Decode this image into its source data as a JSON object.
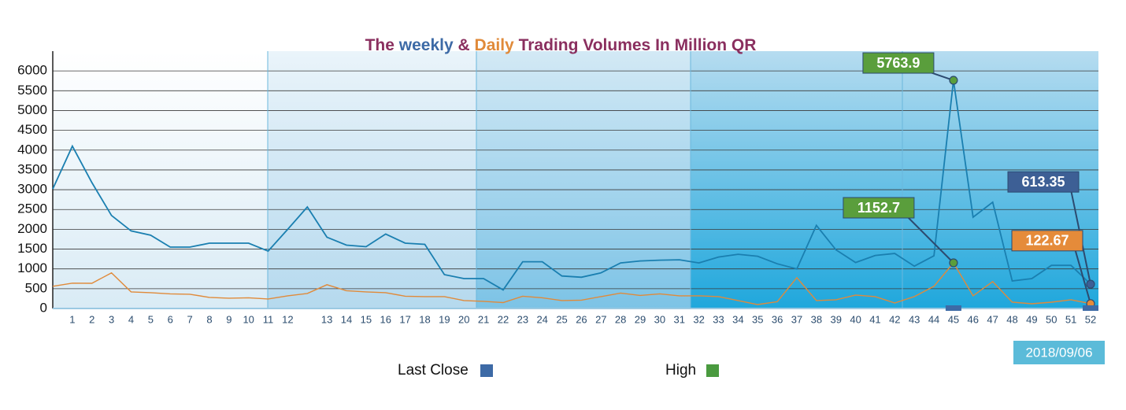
{
  "chart_data": {
    "type": "line",
    "title_parts": [
      {
        "text": "The",
        "color": "#8a2f5f"
      },
      {
        "text": "weekly",
        "color": "#3d6aa6"
      },
      {
        "text": "&",
        "color": "#8a2f5f"
      },
      {
        "text": "Daily",
        "color": "#e08a3a"
      },
      {
        "text": "Trading Volumes In Million QR",
        "color": "#8a2f5f"
      }
    ],
    "categories": [
      null,
      "1",
      "2",
      "3",
      "4",
      "5",
      "6",
      "7",
      "8",
      "9",
      "10",
      "11",
      "12",
      null,
      "13",
      "14",
      "15",
      "16",
      "17",
      "18",
      "19",
      "20",
      "21",
      "22",
      "23",
      "24",
      "25",
      "26",
      "27",
      "28",
      "29",
      "30",
      "31",
      "32",
      "33",
      "34",
      "35",
      "36",
      "37",
      "38",
      "39",
      "40",
      "41",
      "42",
      "43",
      "44",
      "45",
      "46",
      "47",
      "48",
      "49",
      "50",
      "51",
      "52"
    ],
    "series": [
      {
        "color": "#1a7fb0",
        "values": [
          3020,
          4100,
          3180,
          2350,
          1960,
          1850,
          1550,
          1550,
          1650,
          1650,
          1650,
          1450,
          2000,
          2565,
          1800,
          1600,
          1560,
          1880,
          1650,
          1620,
          855,
          755,
          755,
          470,
          1180,
          1180,
          820,
          790,
          900,
          1150,
          1200,
          1220,
          1230,
          1150,
          1300,
          1370,
          1320,
          1130,
          1000,
          2100,
          1480,
          1160,
          1340,
          1390,
          1070,
          1330,
          5763.9,
          2305,
          2685,
          695,
          755,
          1090,
          1090,
          613.35
        ],
        "value_labels": [
          null,
          null,
          null,
          null,
          null,
          null,
          null,
          null,
          null,
          null,
          null,
          null,
          null,
          null,
          null,
          null,
          null,
          null,
          null,
          null,
          null,
          null,
          null,
          null,
          null,
          null,
          null,
          null,
          null,
          null,
          null,
          null,
          null,
          null,
          null,
          null,
          null,
          null,
          null,
          null,
          null,
          null,
          null,
          null,
          null,
          null,
          "5763.9",
          null,
          null,
          null,
          null,
          null,
          null,
          "613.35"
        ],
        "label_colors": {
          "46": "#5a9e3c",
          "53": "#3d5f95"
        }
      },
      {
        "color": "#e08a3a",
        "values": [
          560,
          640,
          636,
          900,
          420,
          400,
          370,
          360,
          280,
          260,
          270,
          240,
          320,
          380,
          600,
          450,
          420,
          400,
          310,
          300,
          300,
          200,
          180,
          150,
          310,
          270,
          200,
          210,
          300,
          390,
          330,
          370,
          320,
          320,
          300,
          200,
          100,
          170,
          780,
          200,
          220,
          340,
          300,
          140,
          300,
          560,
          1152.7,
          320,
          680,
          160,
          120,
          160,
          220,
          122.67
        ],
        "value_labels": [
          null,
          null,
          null,
          null,
          null,
          null,
          null,
          null,
          null,
          null,
          null,
          null,
          null,
          null,
          null,
          null,
          null,
          null,
          null,
          null,
          null,
          null,
          null,
          null,
          null,
          null,
          null,
          null,
          null,
          null,
          null,
          null,
          null,
          null,
          null,
          null,
          null,
          null,
          null,
          null,
          null,
          null,
          null,
          null,
          null,
          null,
          "1152.7",
          null,
          null,
          null,
          null,
          null,
          null,
          "122.67"
        ],
        "label_colors": {
          "46": "#5a9e3c",
          "53": "#e58b3a"
        }
      }
    ],
    "ylim": [
      0,
      6500
    ],
    "yticks": [
      0,
      500,
      1000,
      1500,
      2000,
      2500,
      3000,
      3500,
      4000,
      4500,
      5000,
      5500,
      6000
    ],
    "grid": true,
    "date_label": "2018/09/06",
    "legend": [
      {
        "name": "Last Close",
        "color": "#3d6aa6"
      },
      {
        "name": "High",
        "color": "#4a9a3f"
      }
    ]
  }
}
